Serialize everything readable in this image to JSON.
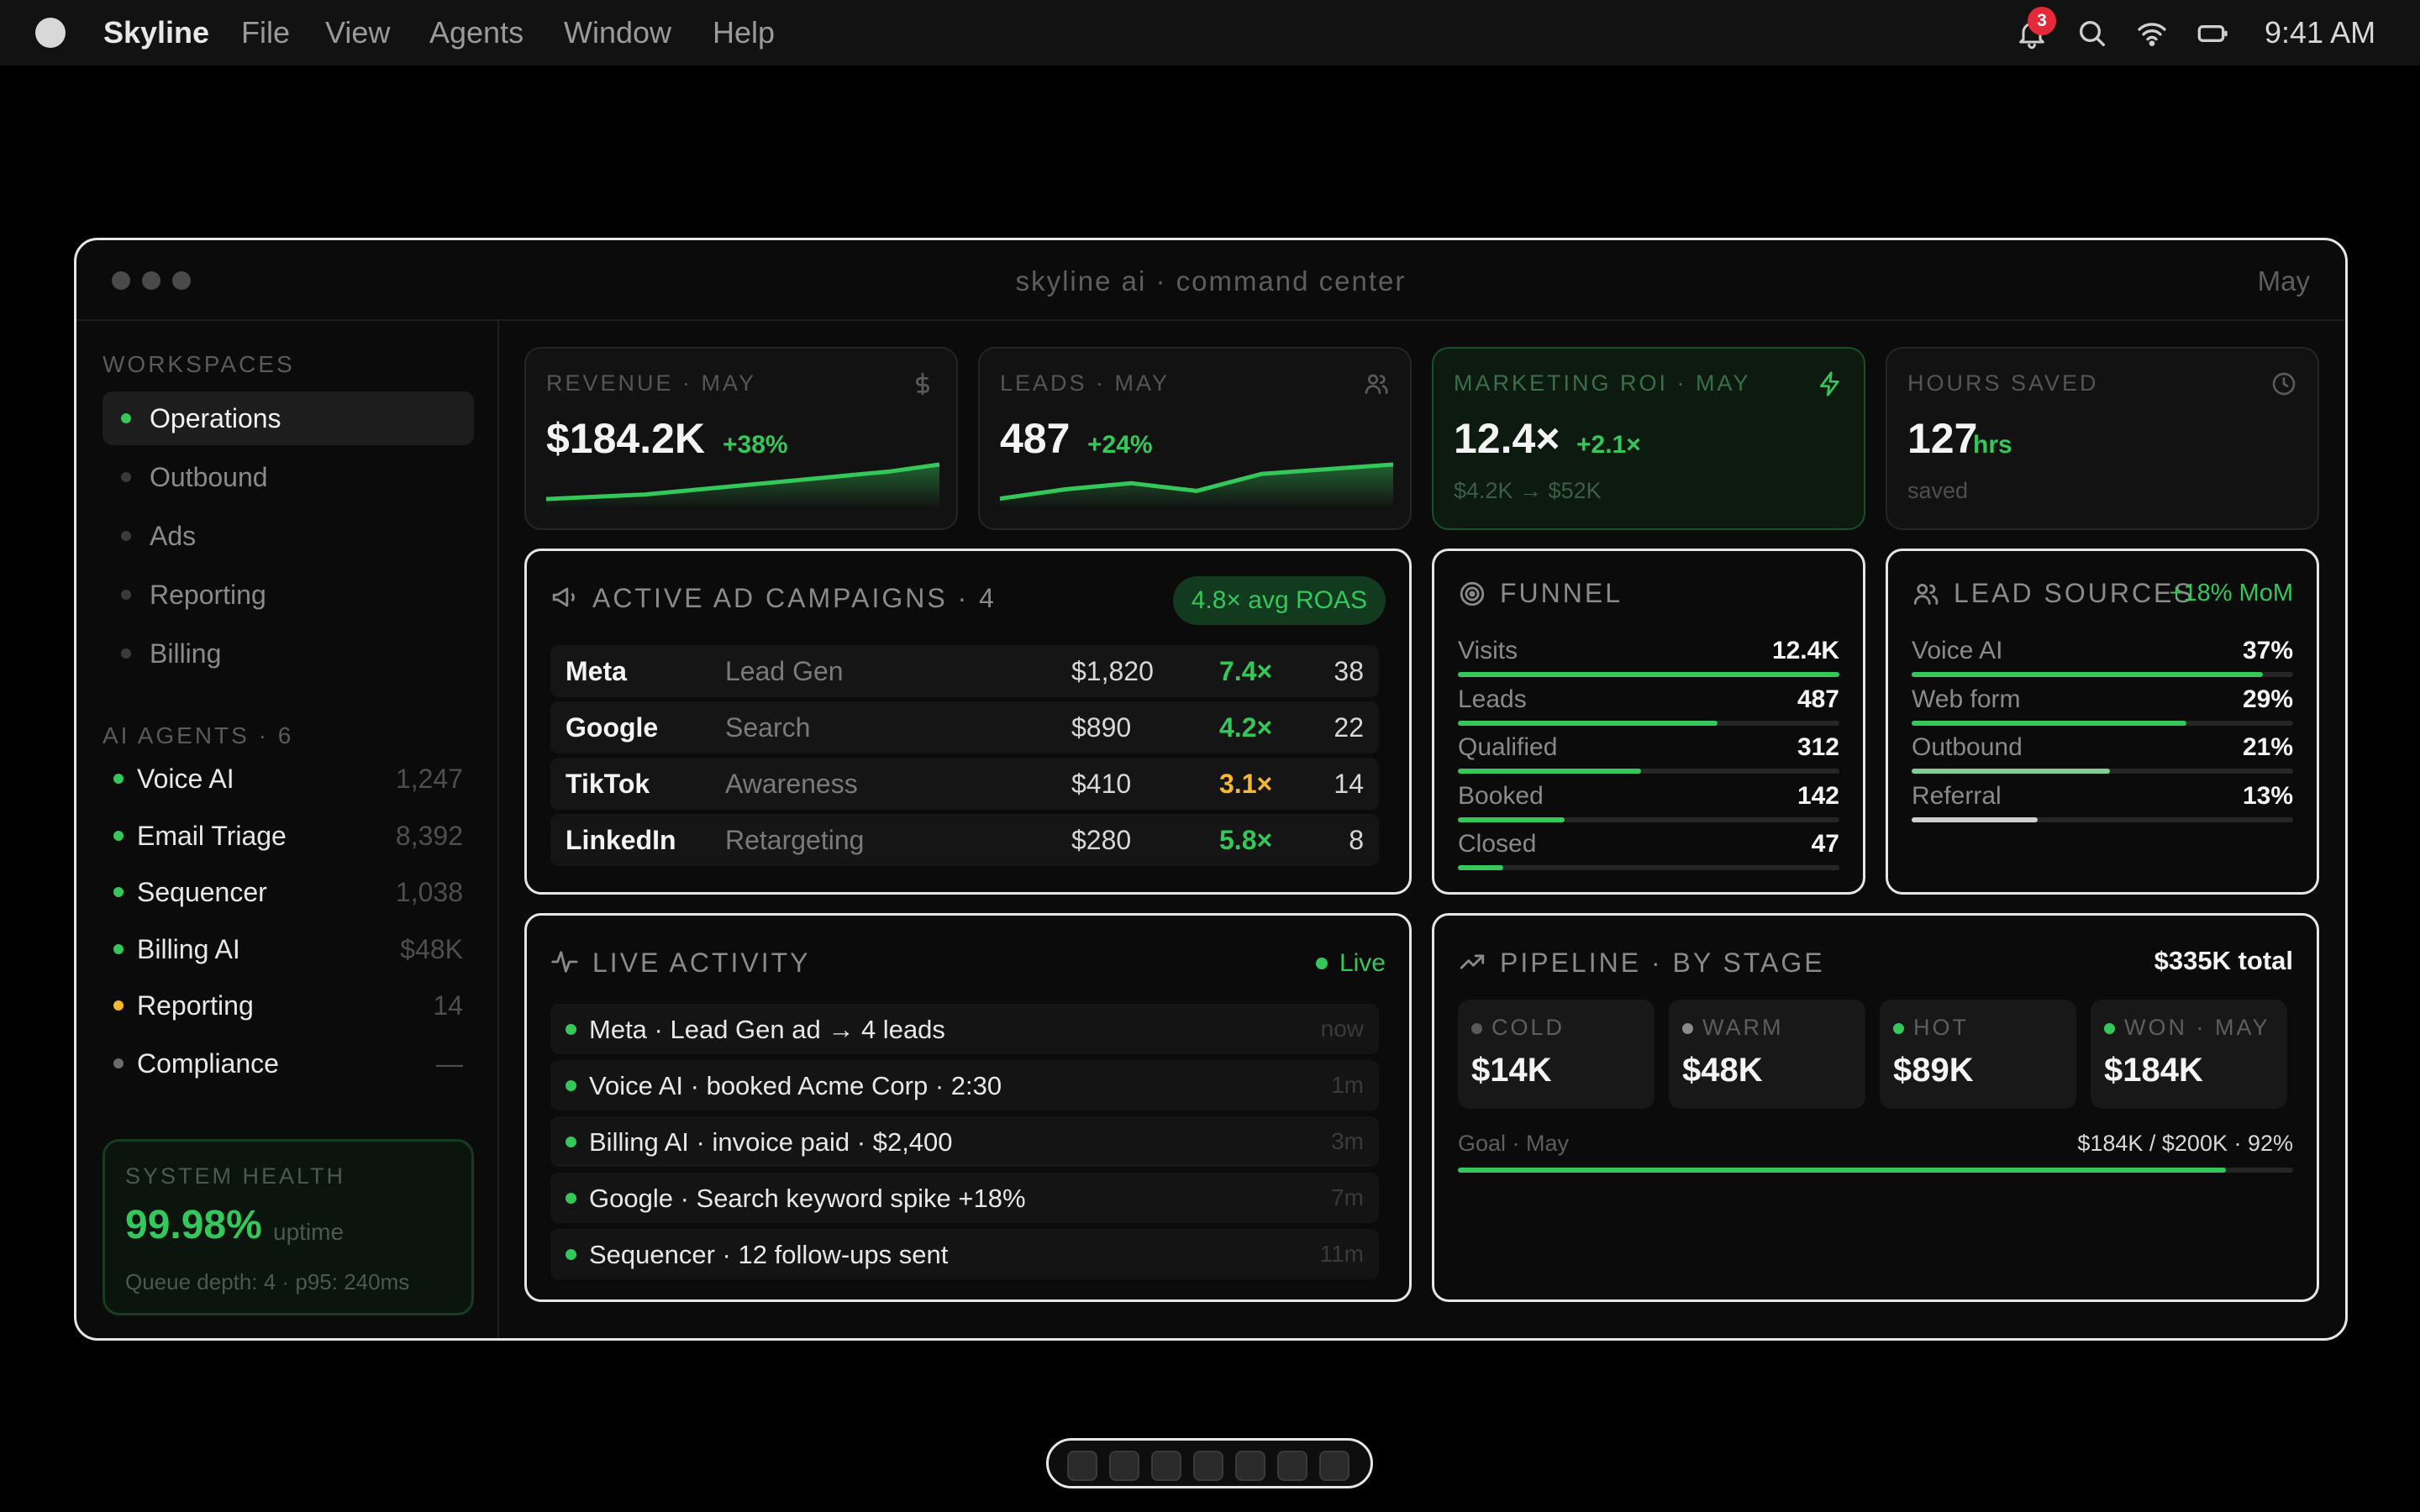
{
  "menubar": {
    "app_name": "Skyline",
    "menus": [
      "File",
      "View",
      "Agents",
      "Window",
      "Help"
    ],
    "notification_count": "3",
    "clock": "9:41 AM"
  },
  "window": {
    "title": "skyline ai · command center",
    "month": "May"
  },
  "sidebar": {
    "workspaces_title": "WORKSPACES",
    "workspaces": [
      {
        "label": "Operations",
        "active": true
      },
      {
        "label": "Outbound",
        "active": false
      },
      {
        "label": "Ads",
        "active": false
      },
      {
        "label": "Reporting",
        "active": false
      },
      {
        "label": "Billing",
        "active": false
      }
    ],
    "agents_title": "AI AGENTS · 6",
    "agents": [
      {
        "label": "Voice AI",
        "value": "1,247",
        "status_color": "#34c759"
      },
      {
        "label": "Email Triage",
        "value": "8,392",
        "status_color": "#34c759"
      },
      {
        "label": "Sequencer",
        "value": "1,038",
        "status_color": "#34c759"
      },
      {
        "label": "Billing AI",
        "value": "$48K",
        "status_color": "#34c759"
      },
      {
        "label": "Reporting",
        "value": "14",
        "status_color": "#f5b82e"
      },
      {
        "label": "Compliance",
        "value": "—",
        "status_color": "#6a6a6a"
      }
    ],
    "health": {
      "title": "SYSTEM HEALTH",
      "value": "99.98%",
      "unit": "uptime",
      "detail": "Queue depth: 4 · p95: 240ms"
    }
  },
  "stats": {
    "revenue": {
      "title": "REVENUE · MAY",
      "value": "$184.2K",
      "delta": "+38%",
      "trend": [
        10,
        14,
        18,
        26,
        34,
        42,
        50,
        58,
        70
      ]
    },
    "leads": {
      "title": "LEADS · MAY",
      "value": "487",
      "delta": "+24%",
      "trend": [
        8,
        20,
        28,
        18,
        40,
        46,
        52
      ]
    },
    "roi": {
      "title": "MARKETING ROI · MAY",
      "value": "12.4×",
      "delta": "+2.1×",
      "sub": "$4.2K → $52K"
    },
    "hours": {
      "title": "HOURS SAVED",
      "value": "127",
      "delta": "hrs",
      "sub": "saved"
    }
  },
  "campaigns": {
    "title": "ACTIVE AD CAMPAIGNS · 4",
    "roas_badge": "4.8× avg ROAS",
    "rows": [
      {
        "name": "Meta",
        "type": "Lead Gen",
        "spend": "$1,820",
        "roas": "7.4×",
        "leads": "38",
        "roas_color": "#34c759"
      },
      {
        "name": "Google",
        "type": "Search",
        "spend": "$890",
        "roas": "4.2×",
        "leads": "22",
        "roas_color": "#34c759"
      },
      {
        "name": "TikTok",
        "type": "Awareness",
        "spend": "$410",
        "roas": "3.1×",
        "leads": "14",
        "roas_color": "#f5b82e"
      },
      {
        "name": "LinkedIn",
        "type": "Retargeting",
        "spend": "$280",
        "roas": "5.8×",
        "leads": "8",
        "roas_color": "#34c759"
      }
    ]
  },
  "funnel": {
    "title": "FUNNEL",
    "rows": [
      {
        "label": "Visits",
        "value": "12.4K",
        "pct": 100
      },
      {
        "label": "Leads",
        "value": "487",
        "pct": 68
      },
      {
        "label": "Qualified",
        "value": "312",
        "pct": 48
      },
      {
        "label": "Booked",
        "value": "142",
        "pct": 28
      },
      {
        "label": "Closed",
        "value": "47",
        "pct": 12
      }
    ]
  },
  "lead_sources": {
    "title": "LEAD SOURCES",
    "delta": "+18% MoM",
    "rows": [
      {
        "label": "Voice AI",
        "value": "37%",
        "pct": 92,
        "color": "#34c759"
      },
      {
        "label": "Web form",
        "value": "29%",
        "pct": 72,
        "color": "#34c759"
      },
      {
        "label": "Outbound",
        "value": "21%",
        "pct": 52,
        "color": "#7fcf94"
      },
      {
        "label": "Referral",
        "value": "13%",
        "pct": 33,
        "color": "#cfcfcf"
      }
    ]
  },
  "activity": {
    "title": "LIVE ACTIVITY",
    "live_label": "Live",
    "rows": [
      {
        "text": "Meta · Lead Gen ad → 4 leads",
        "time": "now"
      },
      {
        "text": "Voice AI · booked Acme Corp · 2:30",
        "time": "1m"
      },
      {
        "text": "Billing AI · invoice paid · $2,400",
        "time": "3m"
      },
      {
        "text": "Google · Search keyword spike +18%",
        "time": "7m"
      },
      {
        "text": "Sequencer · 12 follow-ups sent",
        "time": "11m"
      }
    ]
  },
  "pipeline": {
    "title": "PIPELINE · BY STAGE",
    "total": "$335K total",
    "stages": [
      {
        "name": "COLD",
        "value": "$14K",
        "color": "#5a5a5a"
      },
      {
        "name": "WARM",
        "value": "$48K",
        "color": "#8a8a8a"
      },
      {
        "name": "HOT",
        "value": "$89K",
        "color": "#34c759"
      },
      {
        "name": "WON · MAY",
        "value": "$184K",
        "color": "#34c759"
      }
    ],
    "goal_label": "Goal · May",
    "goal_value": "$184K / $200K · 92%",
    "goal_pct": 92
  },
  "colors": {
    "accent": "#34c759",
    "warning": "#f5b82e",
    "background": "#0b0b0b"
  },
  "dock": {
    "slots": 7
  }
}
